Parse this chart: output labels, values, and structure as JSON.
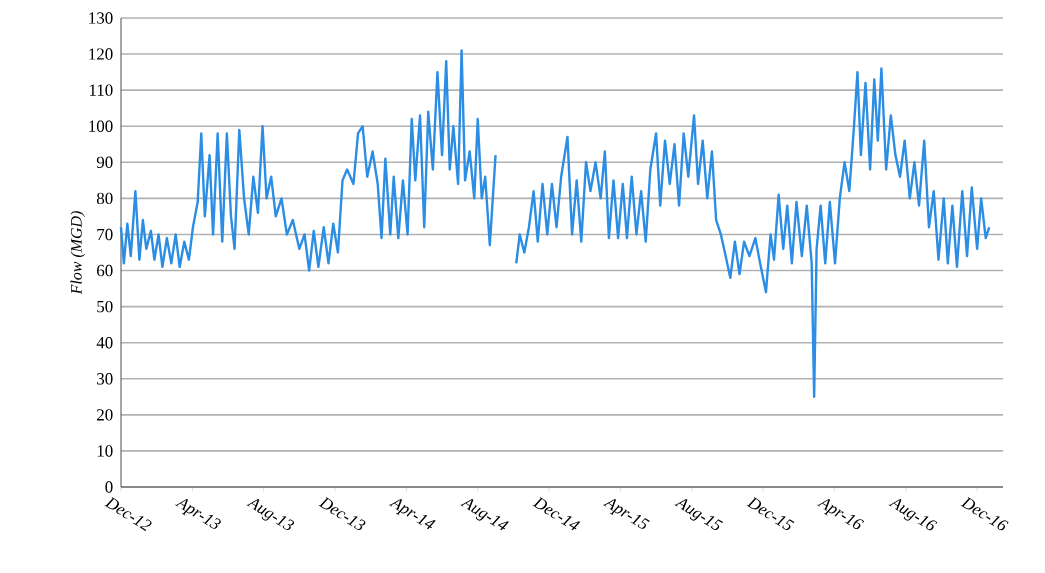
{
  "chart_data": {
    "type": "line",
    "ylabel": "Flow (MGD)",
    "xlim": [
      "2012-12-01",
      "2017-01-15"
    ],
    "ylim": [
      0,
      130
    ],
    "grid": "y",
    "xticks": [
      {
        "value": "2012-12",
        "label": "Dec-12"
      },
      {
        "value": "2013-04",
        "label": "Apr-13"
      },
      {
        "value": "2013-08",
        "label": "Aug-13"
      },
      {
        "value": "2013-12",
        "label": "Dec-13"
      },
      {
        "value": "2014-04",
        "label": "Apr-14"
      },
      {
        "value": "2014-08",
        "label": "Aug-14"
      },
      {
        "value": "2014-12",
        "label": "Dec-14"
      },
      {
        "value": "2015-04",
        "label": "Apr-15"
      },
      {
        "value": "2015-08",
        "label": "Aug-15"
      },
      {
        "value": "2015-12",
        "label": "Dec-15"
      },
      {
        "value": "2016-04",
        "label": "Apr-16"
      },
      {
        "value": "2016-08",
        "label": "Aug-16"
      },
      {
        "value": "2016-12",
        "label": "Dec-16"
      }
    ],
    "yticks": [
      0,
      10,
      20,
      30,
      40,
      50,
      60,
      70,
      80,
      90,
      100,
      110,
      120,
      130
    ],
    "x": [
      "2012-12-01",
      "2012-12-06",
      "2012-12-12",
      "2012-12-18",
      "2012-12-26",
      "2013-01-02",
      "2013-01-08",
      "2013-01-14",
      "2013-01-22",
      "2013-01-28",
      "2013-02-04",
      "2013-02-10",
      "2013-02-17",
      "2013-02-24",
      "2013-03-03",
      "2013-03-10",
      "2013-03-18",
      "2013-03-26",
      "2013-04-02",
      "2013-04-10",
      "2013-04-16",
      "2013-04-22",
      "2013-04-30",
      "2013-05-06",
      "2013-05-14",
      "2013-05-22",
      "2013-05-30",
      "2013-06-06",
      "2013-06-12",
      "2013-06-20",
      "2013-06-28",
      "2013-07-06",
      "2013-07-14",
      "2013-07-22",
      "2013-07-30",
      "2013-08-06",
      "2013-08-14",
      "2013-08-22",
      "2013-09-01",
      "2013-09-10",
      "2013-09-20",
      "2013-10-01",
      "2013-10-10",
      "2013-10-18",
      "2013-10-26",
      "2013-11-03",
      "2013-11-12",
      "2013-11-20",
      "2013-11-28",
      "2013-12-06",
      "2013-12-14",
      "2013-12-22",
      "2014-01-02",
      "2014-01-10",
      "2014-01-18",
      "2014-01-26",
      "2014-02-04",
      "2014-02-12",
      "2014-02-18",
      "2014-02-24",
      "2014-03-04",
      "2014-03-10",
      "2014-03-18",
      "2014-03-26",
      "2014-04-03",
      "2014-04-10",
      "2014-04-16",
      "2014-04-24",
      "2014-05-01",
      "2014-05-08",
      "2014-05-16",
      "2014-05-24",
      "2014-06-01",
      "2014-06-08",
      "2014-06-14",
      "2014-06-20",
      "2014-06-28",
      "2014-07-04",
      "2014-07-10",
      "2014-07-18",
      "2014-07-26",
      "2014-08-01",
      "2014-08-08",
      "2014-08-14",
      "2014-08-22",
      "2014-09-01",
      "2014-09-15",
      "2014-10-06",
      "2014-10-12",
      "2014-10-20",
      "2014-10-28",
      "2014-11-05",
      "2014-11-12",
      "2014-11-20",
      "2014-11-28",
      "2014-12-06",
      "2014-12-14",
      "2014-12-22",
      "2015-01-02",
      "2015-01-10",
      "2015-01-18",
      "2015-01-26",
      "2015-02-03",
      "2015-02-10",
      "2015-02-18",
      "2015-02-26",
      "2015-03-05",
      "2015-03-12",
      "2015-03-20",
      "2015-03-28",
      "2015-04-05",
      "2015-04-12",
      "2015-04-20",
      "2015-04-28",
      "2015-05-06",
      "2015-05-14",
      "2015-05-22",
      "2015-06-01",
      "2015-06-08",
      "2015-06-16",
      "2015-06-24",
      "2015-07-02",
      "2015-07-10",
      "2015-07-18",
      "2015-07-26",
      "2015-08-05",
      "2015-08-12",
      "2015-08-20",
      "2015-08-28",
      "2015-09-05",
      "2015-09-12",
      "2015-09-20",
      "2015-09-28",
      "2015-10-06",
      "2015-10-14",
      "2015-10-22",
      "2015-10-30",
      "2015-11-08",
      "2015-11-18",
      "2015-11-26",
      "2015-12-06",
      "2015-12-14",
      "2015-12-20",
      "2015-12-28",
      "2016-01-05",
      "2016-01-12",
      "2016-01-20",
      "2016-01-28",
      "2016-02-06",
      "2016-02-14",
      "2016-02-22",
      "2016-02-26",
      "2016-03-01",
      "2016-03-08",
      "2016-03-16",
      "2016-03-24",
      "2016-04-02",
      "2016-04-10",
      "2016-04-18",
      "2016-04-26",
      "2016-05-04",
      "2016-05-10",
      "2016-05-16",
      "2016-05-24",
      "2016-06-01",
      "2016-06-08",
      "2016-06-14",
      "2016-06-20",
      "2016-06-28",
      "2016-07-06",
      "2016-07-14",
      "2016-07-22",
      "2016-07-30",
      "2016-08-08",
      "2016-08-16",
      "2016-08-24",
      "2016-09-02",
      "2016-09-10",
      "2016-09-18",
      "2016-09-26",
      "2016-10-05",
      "2016-10-12",
      "2016-10-20",
      "2016-10-28",
      "2016-11-06",
      "2016-11-14",
      "2016-11-22",
      "2016-12-01",
      "2016-12-08",
      "2016-12-16",
      "2016-12-22"
    ],
    "series": [
      {
        "color": "#2b8de3",
        "values": [
          72,
          62,
          73,
          64,
          82,
          63,
          74,
          66,
          71,
          63,
          70,
          61,
          69,
          62,
          70,
          61,
          68,
          63,
          72,
          79,
          98,
          75,
          92,
          70,
          98,
          68,
          98,
          75,
          66,
          99,
          80,
          70,
          86,
          76,
          100,
          80,
          86,
          75,
          80,
          70,
          74,
          66,
          70,
          60,
          71,
          61,
          72,
          62,
          73,
          65,
          85,
          88,
          84,
          98,
          100,
          86,
          93,
          84,
          69,
          91,
          70,
          86,
          69,
          85,
          70,
          102,
          85,
          103,
          72,
          104,
          88,
          115,
          92,
          118,
          88,
          100,
          84,
          121,
          85,
          93,
          80,
          102,
          80,
          86,
          67,
          92,
          null,
          62,
          70,
          65,
          72,
          82,
          68,
          84,
          70,
          84,
          72,
          86,
          97,
          70,
          85,
          68,
          90,
          82,
          90,
          80,
          93,
          69,
          85,
          69,
          84,
          69,
          86,
          70,
          82,
          68,
          88,
          98,
          78,
          96,
          84,
          95,
          78,
          98,
          86,
          103,
          84,
          96,
          80,
          93,
          74,
          70,
          64,
          58,
          68,
          59,
          68,
          64,
          69,
          62,
          54,
          70,
          63,
          81,
          66,
          78,
          62,
          79,
          64,
          78,
          62,
          25,
          66,
          78,
          62,
          79,
          62,
          80,
          90,
          82,
          100,
          115,
          92,
          112,
          88,
          113,
          96,
          116,
          88,
          103,
          92,
          86,
          96,
          80,
          90,
          78,
          96,
          72,
          82,
          63,
          80,
          62,
          78,
          61,
          82,
          64,
          83,
          66,
          80,
          69,
          72
        ]
      }
    ]
  }
}
